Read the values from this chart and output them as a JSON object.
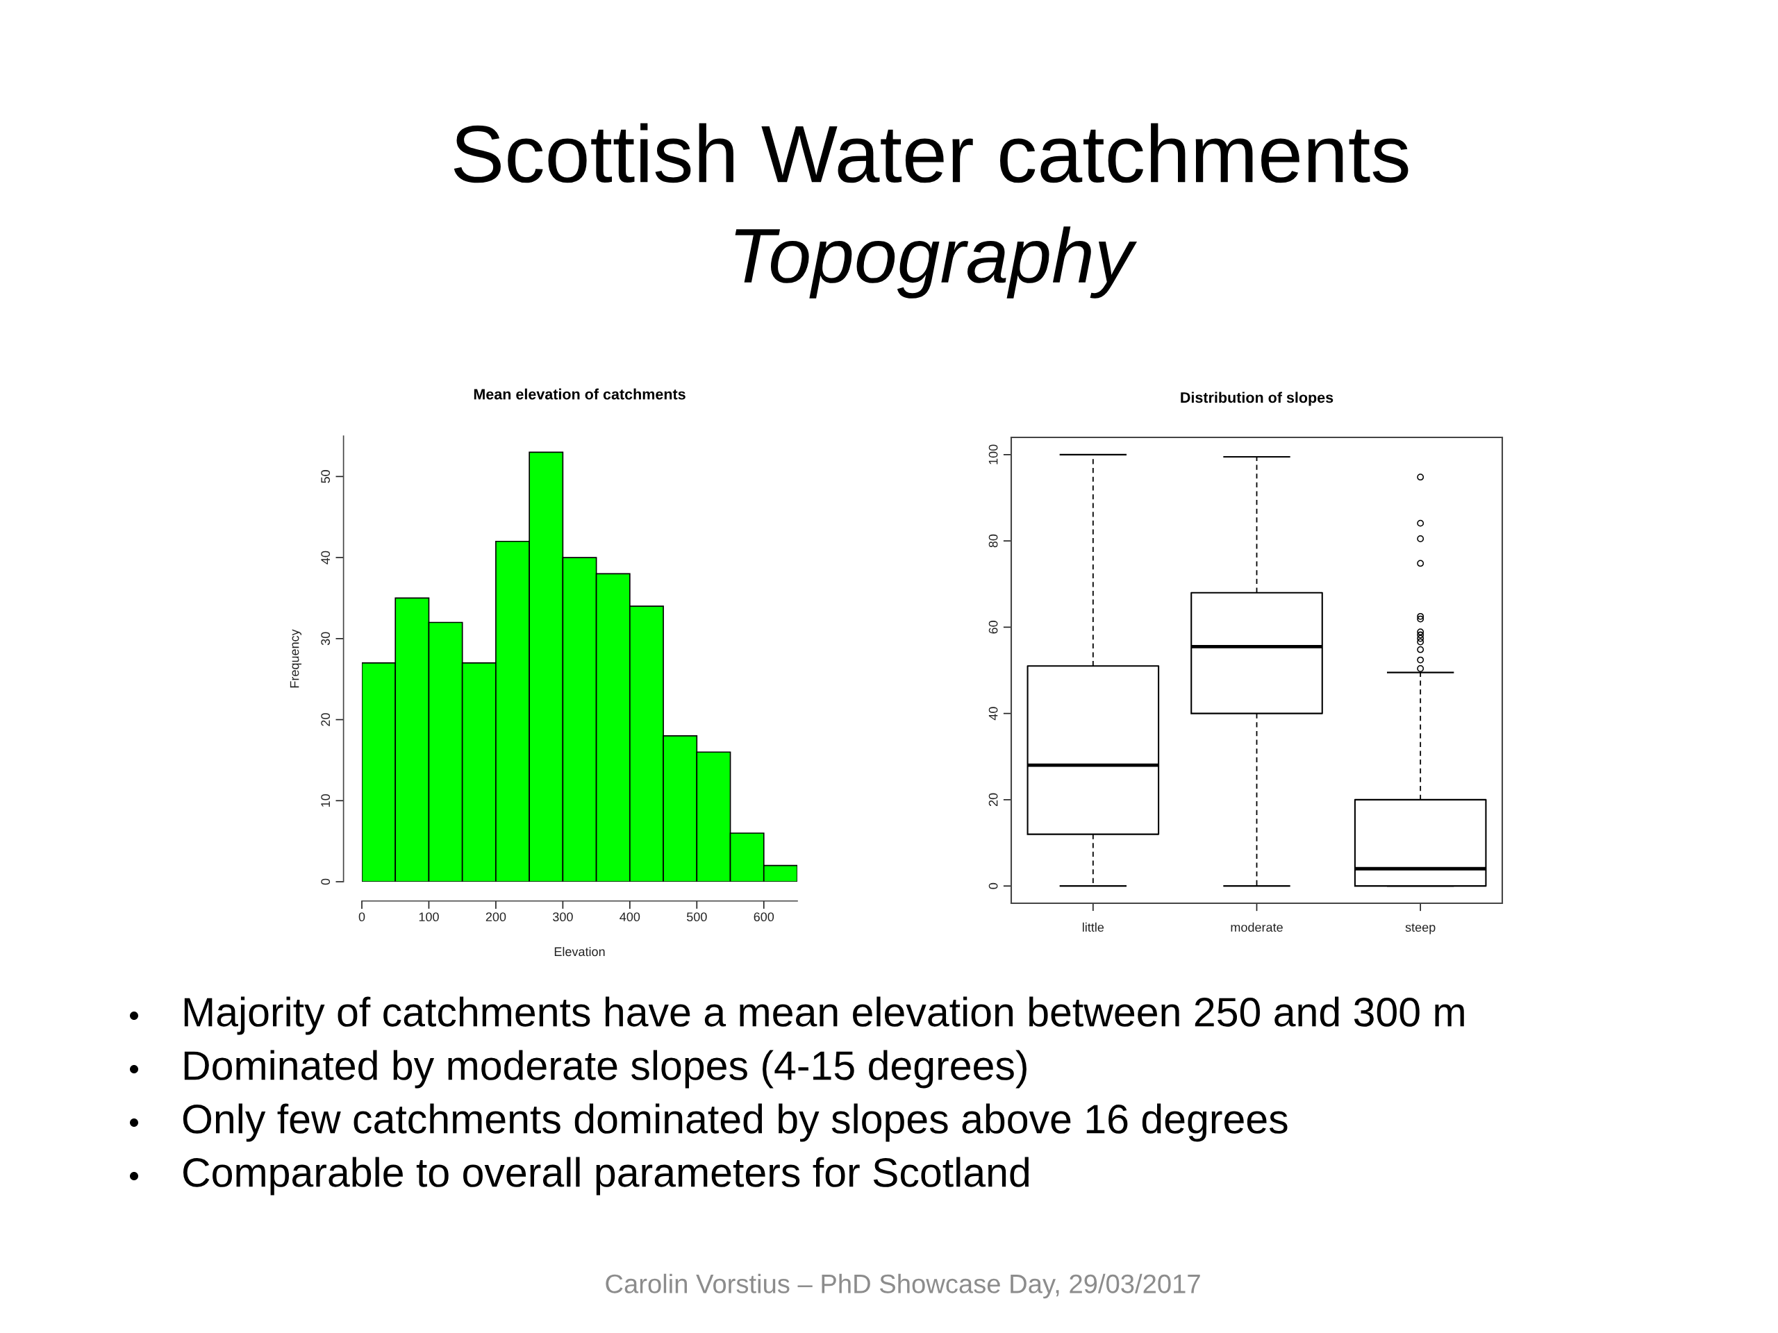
{
  "chart_data": [
    {
      "type": "other",
      "title": "Scottish Water catchments",
      "subtitle": "Topography"
    },
    {
      "type": "histogram",
      "title": "Mean elevation of catchments",
      "xlabel": "Elevation",
      "ylabel": "Frequency",
      "bins": [
        0,
        50,
        100,
        150,
        200,
        250,
        300,
        350,
        400,
        450,
        500,
        550,
        600,
        650
      ],
      "values": [
        27,
        35,
        32,
        27,
        42,
        53,
        40,
        38,
        34,
        18,
        16,
        6,
        2
      ],
      "color": "#00ff00",
      "xlim": [
        0,
        650
      ],
      "xticks": [
        0,
        100,
        200,
        300,
        400,
        500,
        600
      ],
      "ylim": [
        0,
        55
      ],
      "yticks": [
        0,
        10,
        20,
        30,
        40,
        50
      ]
    },
    {
      "type": "box",
      "title": "Distribution of slopes",
      "categories": [
        "little",
        "moderate",
        "steep"
      ],
      "color": "#000000",
      "boxes": [
        {
          "low": 0,
          "q1": 12,
          "median": 28,
          "q3": 51,
          "high": 100
        },
        {
          "low": 0,
          "q1": 40,
          "median": 55.5,
          "q3": 68,
          "high": 99.5
        },
        {
          "low": 0,
          "q1": 0,
          "median": 4,
          "q3": 20,
          "high": 49.5,
          "outliers": [
            94.8,
            84.1,
            80.5,
            74.8,
            62.5,
            61.9,
            58.9,
            58.2,
            57.4,
            56.6,
            54.8,
            52.4,
            50.4
          ]
        }
      ],
      "ylim": [
        -4,
        104
      ],
      "yticks": [
        0,
        20,
        40,
        60,
        80,
        100
      ]
    },
    {
      "type": "other",
      "annotations": [
        "Majority of catchments have a mean elevation between 250 and 300 m",
        "Dominated by moderate slopes (4-15 degrees)",
        "Only few catchments dominated by slopes above 16 degrees",
        "Comparable to overall parameters for Scotland"
      ]
    },
    {
      "type": "other",
      "annotations": [
        "Carolin Vorstius – PhD Showcase Day, 29/03/2017"
      ]
    }
  ]
}
